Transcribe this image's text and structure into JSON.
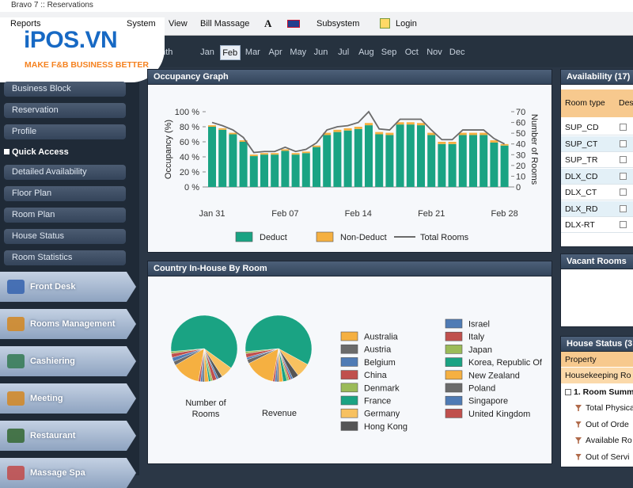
{
  "window_title": "Bravo 7 :: Reservations",
  "menu": [
    "Reports",
    "System",
    "View",
    "Bill Massage",
    "A",
    "Subsystem",
    "Login"
  ],
  "logo": {
    "brand": "iPOS.VN",
    "tagline": "MAKE F&B BUSINESS BETTER"
  },
  "month_bar": {
    "label": "onth",
    "months": [
      "Jan",
      "Feb",
      "Mar",
      "Apr",
      "May",
      "Jun",
      "Jul",
      "Aug",
      "Sep",
      "Oct",
      "Nov",
      "Dec"
    ],
    "selected_index": 1
  },
  "sidebar": {
    "links": [
      "Business Block",
      "Reservation",
      "Profile"
    ],
    "quick_access": {
      "title": "Quick Access",
      "links": [
        "Detailed Availability",
        "Floor Plan",
        "Room Plan",
        "House Status",
        "Room Statistics"
      ]
    }
  },
  "modules": [
    "Front Desk",
    "Rooms Management",
    "Cashiering",
    "Meeting",
    "Restaurant",
    "Massage Spa"
  ],
  "chart_data": [
    {
      "type": "bar",
      "stacked": true,
      "title": "Occupancy Graph",
      "y_label": "Occupancy (%)",
      "y2_label": "Number of Rooms",
      "categories": [
        "Jan 31",
        null,
        null,
        null,
        null,
        null,
        null,
        "Feb 07",
        null,
        null,
        null,
        null,
        null,
        null,
        "Feb 14",
        null,
        null,
        null,
        null,
        null,
        null,
        "Feb 21",
        null,
        null,
        null,
        null,
        null,
        null,
        "Feb 28"
      ],
      "series": [
        {
          "name": "Deduct",
          "color": "#1aa383",
          "values": [
            80,
            76,
            70,
            60,
            41,
            43,
            43,
            48,
            43,
            45,
            53,
            69,
            73,
            75,
            77,
            82,
            70,
            69,
            83,
            83,
            82,
            69,
            57,
            57,
            69,
            69,
            69,
            59,
            55
          ]
        },
        {
          "name": "Non-Deduct",
          "color": "#f5b041",
          "values": [
            2,
            2,
            2,
            2,
            2,
            2,
            2,
            2,
            2,
            2,
            2,
            3,
            3,
            3,
            3,
            3,
            3,
            3,
            3,
            3,
            3,
            3,
            3,
            3,
            3,
            3,
            3,
            3,
            2
          ]
        },
        {
          "name": "Total Rooms",
          "color": "#6b6b6b",
          "type": "line",
          "axis": "y2",
          "values": [
            60,
            57,
            53,
            46,
            32,
            33,
            33,
            37,
            33,
            35,
            41,
            53,
            56,
            57,
            60,
            70,
            54,
            53,
            63,
            63,
            63,
            53,
            44,
            44,
            53,
            53,
            53,
            45,
            40
          ]
        }
      ],
      "ylim": [
        0,
        100
      ],
      "yticks": [
        {
          "value": 0,
          "label": "0 %"
        },
        {
          "value": 20,
          "label": "20 %"
        },
        {
          "value": 40,
          "label": "40 %"
        },
        {
          "value": 60,
          "label": "60 %"
        },
        {
          "value": 80,
          "label": "80 %"
        },
        {
          "value": 100,
          "label": "100 %"
        }
      ],
      "y2lim": [
        0,
        70
      ],
      "y2ticks": [
        0,
        10,
        20,
        30,
        40,
        50,
        60,
        70
      ],
      "grid": false
    },
    {
      "type": "pie",
      "title": "Country In-House By Room",
      "categories": [
        "Australia",
        "Austria",
        "Belgium",
        "China",
        "Denmark",
        "France",
        "Germany",
        "Hong Kong",
        "Israel",
        "Italy",
        "Japan",
        "Korea, Republic Of",
        "New Zealand",
        "Poland",
        "Singapore",
        "United Kingdom"
      ],
      "colors": [
        "#f5b041",
        "#6b6b6b",
        "#4f7bb5",
        "#c0504d",
        "#9bbb59",
        "#1aa383",
        "#f7c160",
        "#555555",
        "#4f7bb5",
        "#c0504d",
        "#9bbb59",
        "#1aa383",
        "#f5b041",
        "#6b6b6b",
        "#4f7bb5",
        "#c0504d"
      ],
      "series": [
        {
          "name": "Number of Rooms",
          "values": [
            14,
            2,
            2,
            2,
            1,
            62,
            6,
            2,
            1,
            2,
            1,
            1,
            2,
            1,
            1,
            1
          ]
        },
        {
          "name": "Revenue",
          "values": [
            15,
            2,
            1,
            2,
            1,
            60,
            7,
            3,
            1,
            1,
            1,
            2,
            2,
            1,
            1,
            1
          ]
        }
      ]
    }
  ],
  "availability": {
    "title": "Availability (17)",
    "columns": [
      "Room type",
      "Des"
    ],
    "rows": [
      "SUP_CD",
      "SUP_CT",
      "SUP_TR",
      "DLX_CD",
      "DLX_CT",
      "DLX_RD",
      "DLX-RT"
    ]
  },
  "vacant_rooms": {
    "title": "Vacant Rooms"
  },
  "house_status": {
    "title": "House Status (3",
    "columns": [
      "Property"
    ],
    "rows": [
      "Housekeeping Ro",
      "1. Room Summ",
      "Total Physica",
      "Out of Orde",
      "Available Ro",
      "Out of Servi"
    ]
  }
}
